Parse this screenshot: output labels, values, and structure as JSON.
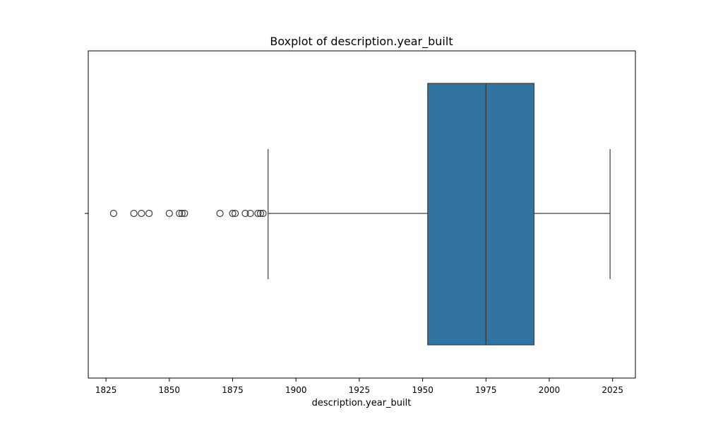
{
  "chart_data": {
    "type": "boxplot",
    "title": "Boxplot of description.year_built",
    "xlabel": "description.year_built",
    "ylabel": "",
    "xlim": [
      1818,
      2034
    ],
    "x_ticks": [
      1825,
      1850,
      1875,
      1900,
      1925,
      1950,
      1975,
      2000,
      2025
    ],
    "x_tick_labels": [
      "1825",
      "1850",
      "1875",
      "1900",
      "1925",
      "1950",
      "1975",
      "2000",
      "2025"
    ],
    "grid": false,
    "box": {
      "q1": 1952,
      "median": 1975,
      "q3": 1994,
      "whisker_low": 1889,
      "whisker_high": 2024,
      "color": "#3274a1",
      "edge_color": "#3d3d3d"
    },
    "outliers": [
      1828,
      1836,
      1839,
      1842,
      1850,
      1854,
      1855,
      1856,
      1870,
      1875,
      1876,
      1880,
      1882,
      1885,
      1886,
      1887
    ]
  }
}
